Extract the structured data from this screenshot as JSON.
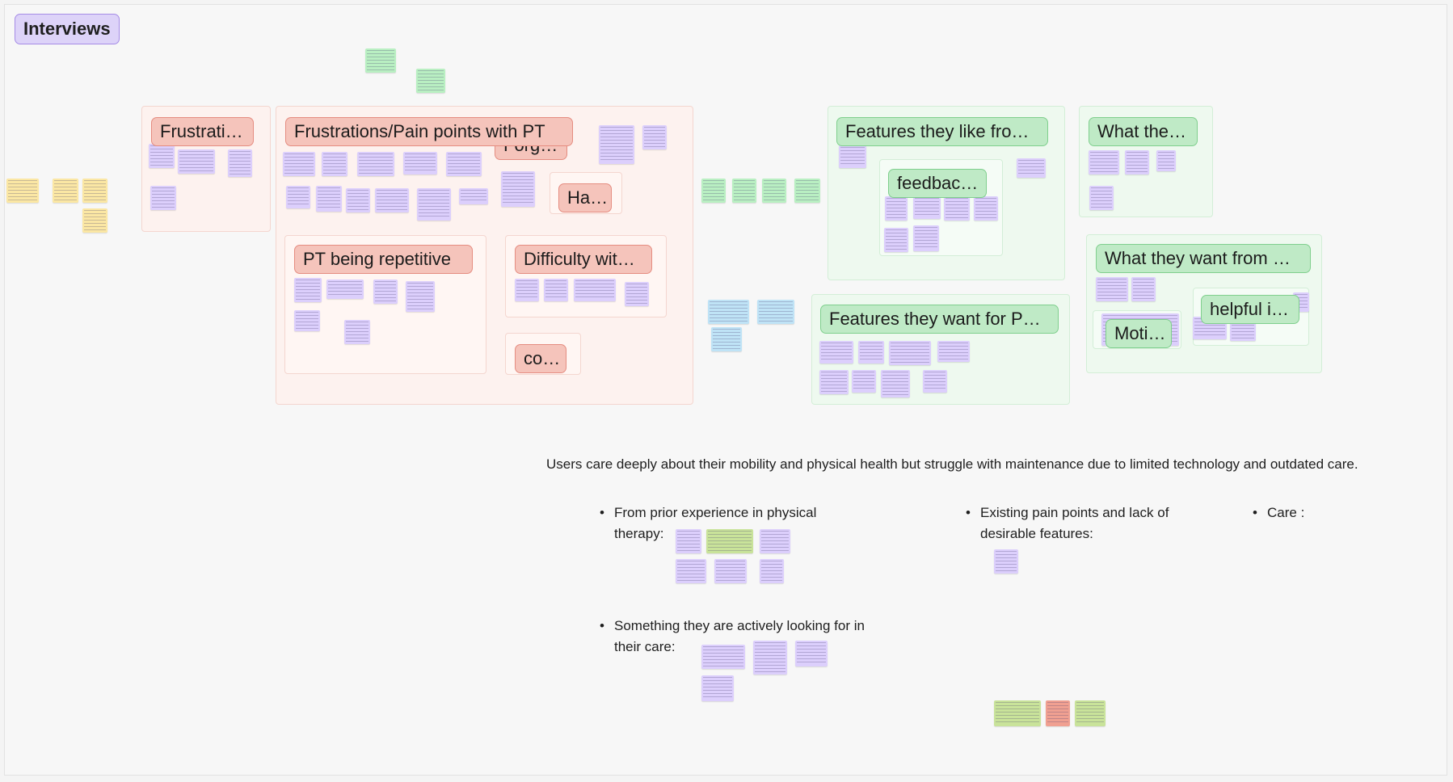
{
  "board": {
    "title": "Interviews"
  },
  "clusters": {
    "frustrations_short": "Frustrati…",
    "frustrations_pain": "Frustrations/Pain points with PT",
    "forg": "Forg…",
    "ha": "Ha…",
    "pt_repetitive": "PT being repetitive",
    "difficulty": "Difficulty wit…",
    "co": "co…",
    "features_like": "Features they like fro…",
    "feedback": "feedbac…",
    "what_the": "What the…",
    "want_from": "What they want from …",
    "helpful": "helpful i…",
    "moti": "Moti…",
    "features_want": "Features they want for P…"
  },
  "summary": {
    "text": "Users care deeply about their mobility and physical health but struggle with maintenance due to limited technology and outdated care.",
    "bullets": [
      "From prior experience in physical therapy:",
      "Existing pain points and lack of desirable features:",
      "Care :",
      "Something they are actively looking for in their care:"
    ]
  },
  "colors": {
    "pink_label": "#f5c4bb",
    "green_label": "#bfeac6",
    "purple_note": "#dccffc",
    "yellow_note": "#fbe7a4",
    "green_note": "#b9efc2",
    "blue_note": "#bfe3f6",
    "title_tag": "#ddd3f8"
  }
}
